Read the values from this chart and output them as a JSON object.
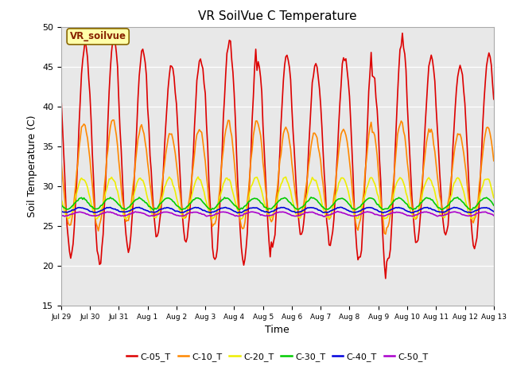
{
  "title": "VR SoilVue C Temperature",
  "xlabel": "Time",
  "ylabel": "Soil Temperature (C)",
  "ylim": [
    15,
    50
  ],
  "bg_color": "#e8e8e8",
  "fig_bg": "#ffffff",
  "series_colors": {
    "C-05_T": "#dd0000",
    "C-10_T": "#ff8800",
    "C-20_T": "#eeee00",
    "C-30_T": "#00cc00",
    "C-40_T": "#0000dd",
    "C-50_T": "#aa00cc"
  },
  "xtick_labels": [
    "Jul 29",
    "Jul 30",
    "Jul 31",
    "Aug 1",
    "Aug 2",
    "Aug 3",
    "Aug 4",
    "Aug 5",
    "Aug 6",
    "Aug 7",
    "Aug 8",
    "Aug 9",
    "Aug 10",
    "Aug 11",
    "Aug 12",
    "Aug 13"
  ],
  "annotation_text": "VR_soilvue",
  "annotation_bg": "#ffffaa",
  "annotation_edge": "#886600"
}
